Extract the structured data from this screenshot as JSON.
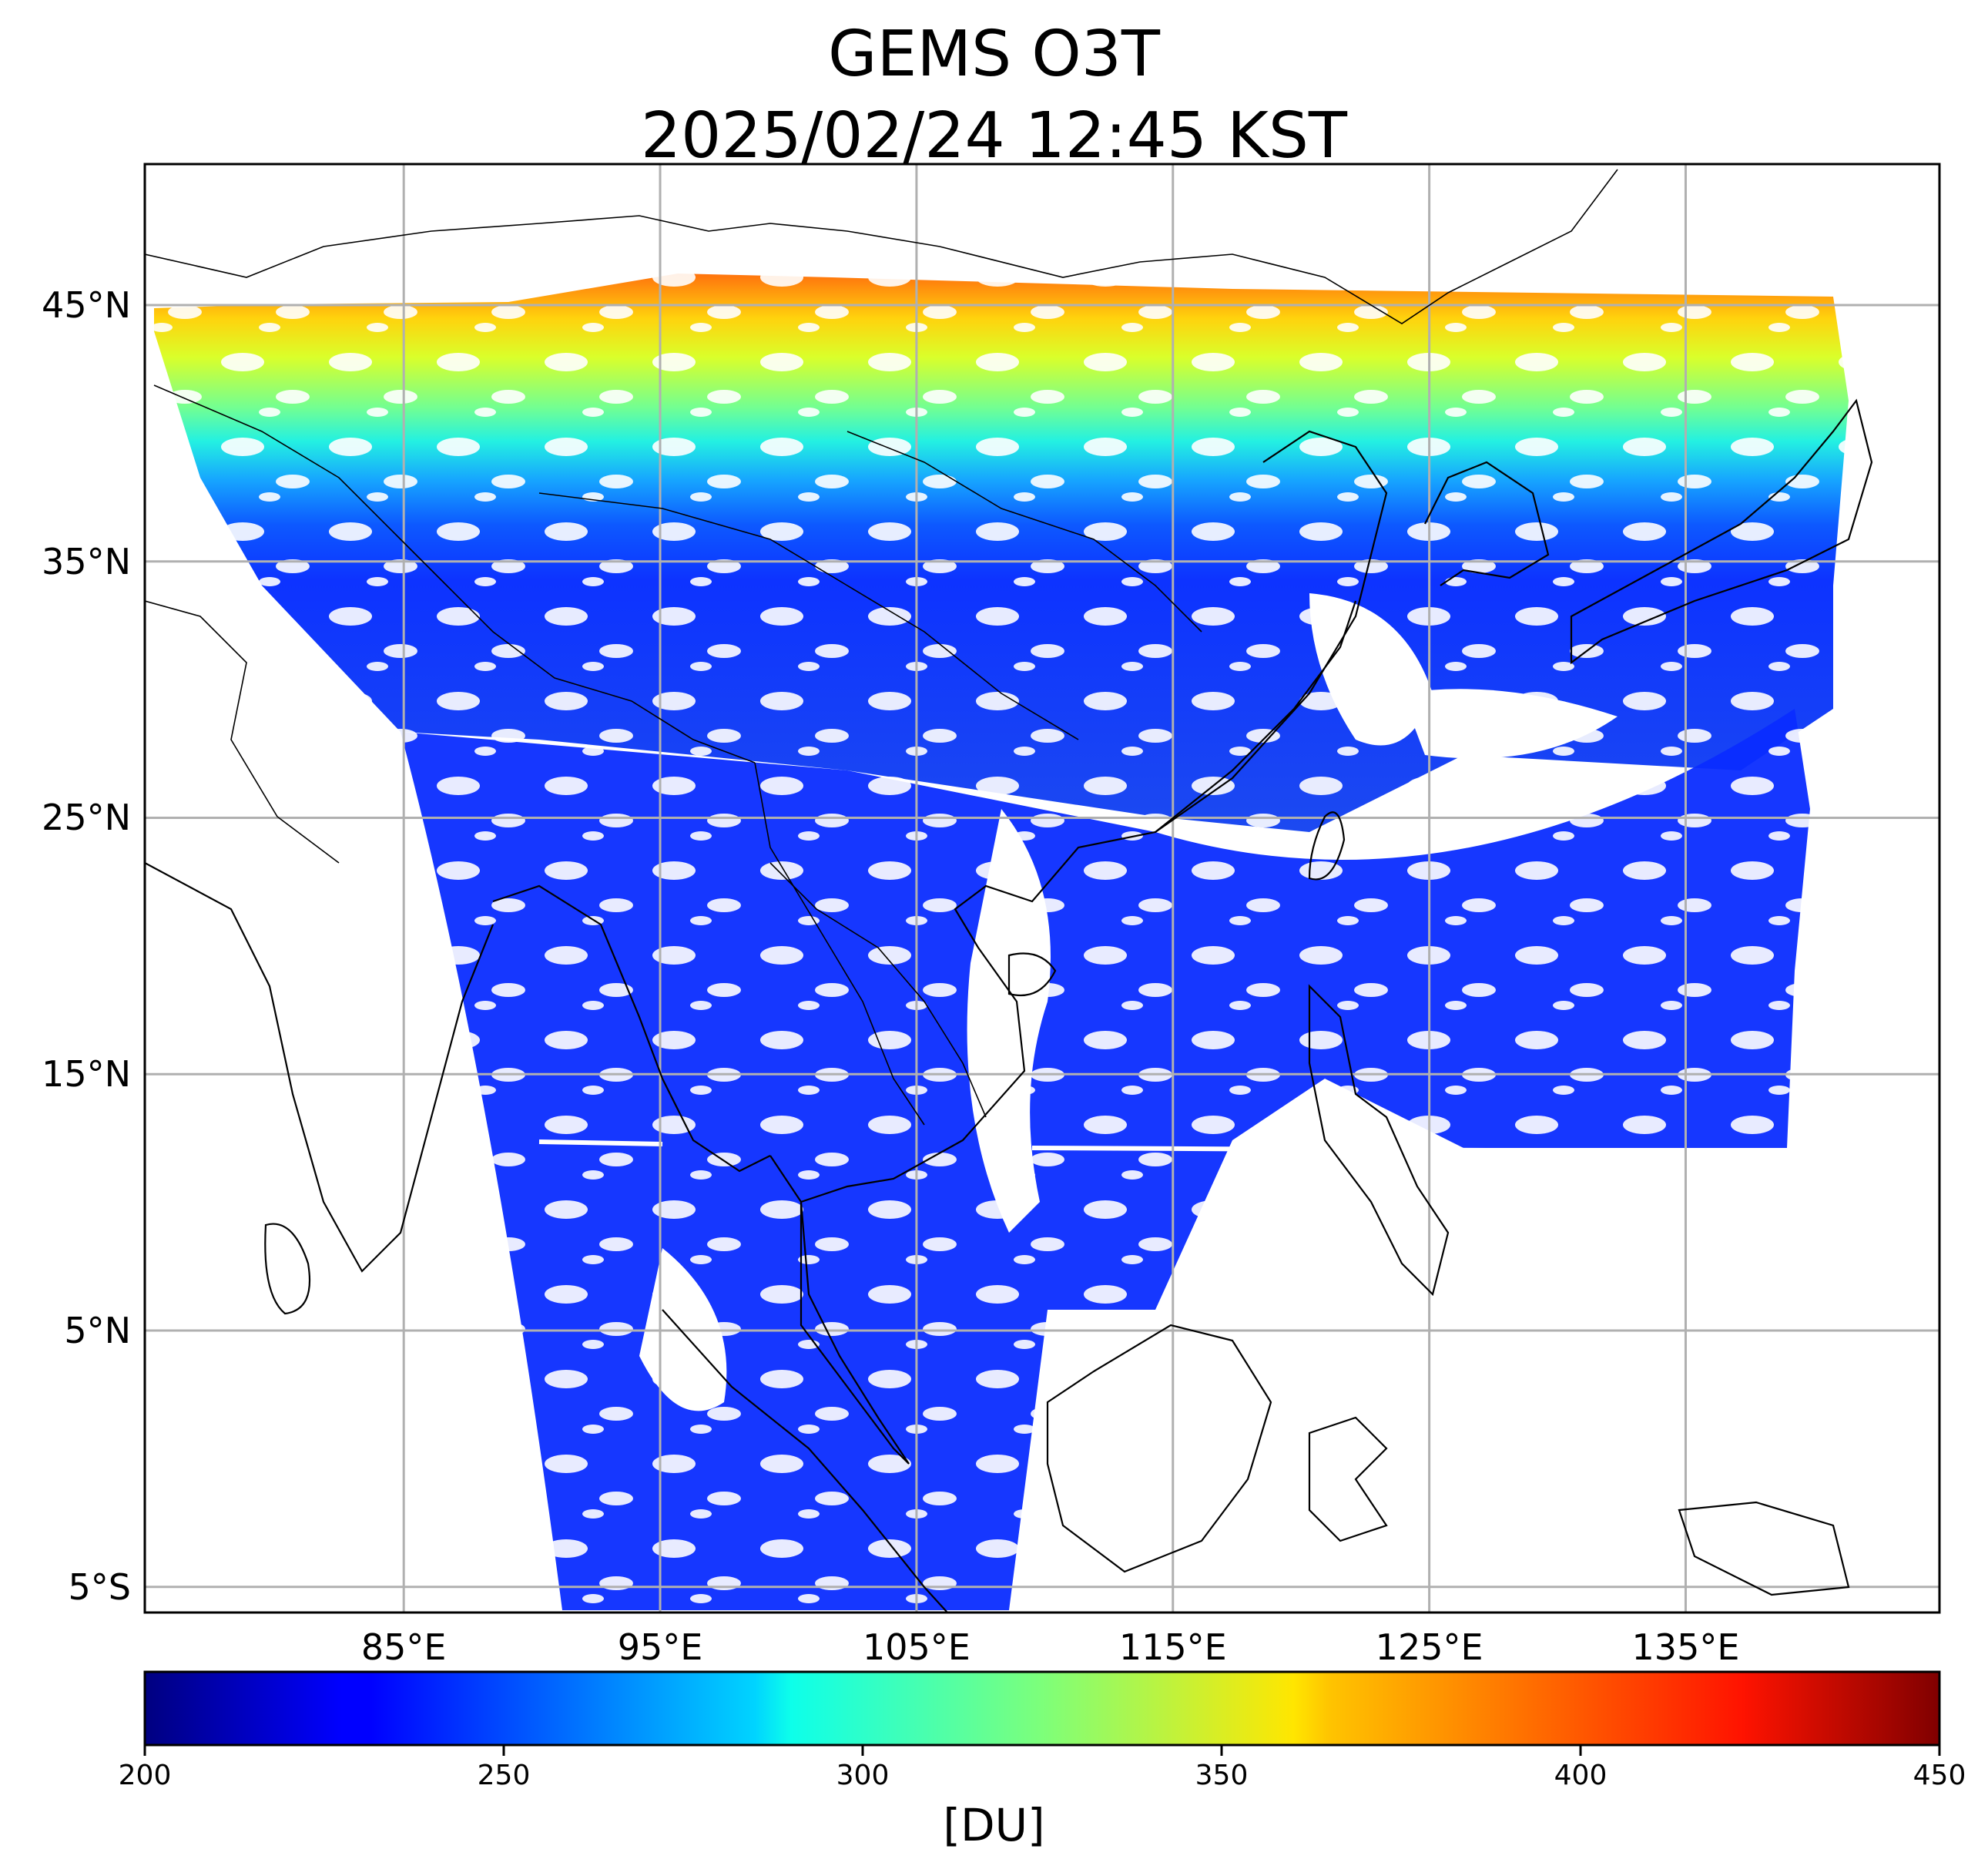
{
  "figure": {
    "title_line1": "GEMS O3T",
    "title_line2": "2025/02/24 12:45 KST"
  },
  "map": {
    "lon_range": [
      74.9,
      144.9
    ],
    "lat_range": [
      -6.0,
      50.5
    ],
    "gridlines": true,
    "lat_ticks": [
      {
        "value": 45,
        "label": "45°N"
      },
      {
        "value": 35,
        "label": "35°N"
      },
      {
        "value": 25,
        "label": "25°N"
      },
      {
        "value": 15,
        "label": "15°N"
      },
      {
        "value": 5,
        "label": "5°N"
      },
      {
        "value": -5,
        "label": "5°S"
      }
    ],
    "lon_ticks": [
      {
        "value": 85,
        "label": "85°E"
      },
      {
        "value": 95,
        "label": "95°E"
      },
      {
        "value": 105,
        "label": "105°E"
      },
      {
        "value": 115,
        "label": "115°E"
      },
      {
        "value": 125,
        "label": "125°E"
      },
      {
        "value": 135,
        "label": "135°E"
      }
    ]
  },
  "colorbar": {
    "min": 200,
    "max": 450,
    "ticks": [
      {
        "value": 200,
        "label": "200"
      },
      {
        "value": 250,
        "label": "250"
      },
      {
        "value": 300,
        "label": "300"
      },
      {
        "value": 350,
        "label": "350"
      },
      {
        "value": 400,
        "label": "400"
      },
      {
        "value": 450,
        "label": "450"
      }
    ],
    "label": "[DU]",
    "colormap": "jet"
  },
  "colors": {
    "frame": "#000000",
    "grid": "#b0b0b0",
    "coastline": "#000000"
  }
}
